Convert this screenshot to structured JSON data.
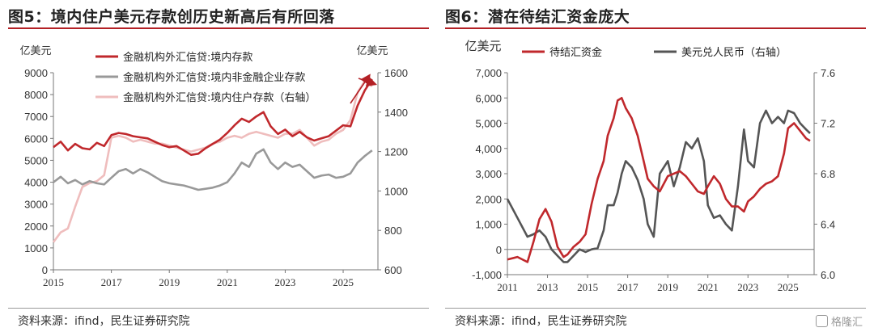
{
  "watermark": "格隆汇",
  "colors": {
    "red": "#c0282c",
    "gray": "#999999",
    "pink": "#efbdbd",
    "dark": "#555555",
    "accent": "#b32025"
  },
  "chart_data": [
    {
      "type": "line",
      "title": "图5：境内住户美元存款创历史新高后有所回落",
      "source": "资料来源：ifind，民生证券研究院",
      "left_unit": "亿美元",
      "right_unit": "亿美元",
      "xlim": [
        2015,
        2026.2
      ],
      "ylim": [
        0,
        9000
      ],
      "y2lim": [
        600,
        1600
      ],
      "xticks": [
        "2015",
        "2017",
        "2019",
        "2021",
        "2023",
        "2025"
      ],
      "yticks": [
        "0",
        "1000",
        "2000",
        "3000",
        "4000",
        "5000",
        "6000",
        "7000",
        "8000",
        "9000"
      ],
      "y2ticks": [
        "600",
        "800",
        "1000",
        "1200",
        "1400",
        "1600"
      ],
      "legend_position": "top",
      "series": [
        {
          "name": "金融机构外汇信贷:境内存款",
          "axis": "left",
          "color": "#c0282c",
          "x": [
            2015.0,
            2015.25,
            2015.5,
            2015.75,
            2016.0,
            2016.25,
            2016.5,
            2016.75,
            2017.0,
            2017.25,
            2017.5,
            2017.75,
            2018.0,
            2018.25,
            2018.5,
            2018.75,
            2019.0,
            2019.25,
            2019.5,
            2019.75,
            2020.0,
            2020.25,
            2020.5,
            2020.75,
            2021.0,
            2021.25,
            2021.5,
            2021.75,
            2022.0,
            2022.25,
            2022.5,
            2022.75,
            2023.0,
            2023.25,
            2023.5,
            2023.75,
            2024.0,
            2024.25,
            2024.5,
            2024.75,
            2025.0,
            2025.25,
            2025.5,
            2025.75,
            2026.0
          ],
          "values": [
            5600,
            5850,
            5450,
            5750,
            5550,
            5500,
            5800,
            5650,
            6150,
            6250,
            6200,
            6100,
            6050,
            6000,
            5850,
            5700,
            5600,
            5650,
            5450,
            5250,
            5300,
            5550,
            5750,
            5950,
            6250,
            6600,
            6900,
            6750,
            7000,
            7200,
            6550,
            6200,
            6400,
            6100,
            6300,
            6050,
            5900,
            6000,
            6100,
            6350,
            6600,
            6550,
            7500,
            8200,
            8700
          ]
        },
        {
          "name": "金融机构外汇信贷:境内非金融企业存款",
          "axis": "left",
          "color": "#999999",
          "x": [
            2015.0,
            2015.25,
            2015.5,
            2015.75,
            2016.0,
            2016.25,
            2016.5,
            2016.75,
            2017.0,
            2017.25,
            2017.5,
            2017.75,
            2018.0,
            2018.25,
            2018.5,
            2018.75,
            2019.0,
            2019.25,
            2019.5,
            2019.75,
            2020.0,
            2020.25,
            2020.5,
            2020.75,
            2021.0,
            2021.25,
            2021.5,
            2021.75,
            2022.0,
            2022.25,
            2022.5,
            2022.75,
            2023.0,
            2023.25,
            2023.5,
            2023.75,
            2024.0,
            2024.25,
            2024.5,
            2024.75,
            2025.0,
            2025.25,
            2025.5,
            2025.75,
            2026.0
          ],
          "values": [
            4000,
            4250,
            3950,
            4100,
            3900,
            4050,
            3950,
            3900,
            4200,
            4500,
            4600,
            4400,
            4600,
            4450,
            4250,
            4050,
            3950,
            3900,
            3850,
            3750,
            3650,
            3700,
            3750,
            3850,
            4000,
            4400,
            4900,
            4700,
            5300,
            5500,
            4900,
            4600,
            4900,
            4700,
            4800,
            4500,
            4200,
            4300,
            4350,
            4200,
            4250,
            4400,
            4900,
            5200,
            5450
          ]
        },
        {
          "name": "金融机构外汇信贷:境内住户存款（右轴）",
          "axis": "right",
          "color": "#efbdbd",
          "x": [
            2015.0,
            2015.25,
            2015.5,
            2015.75,
            2016.0,
            2016.25,
            2016.5,
            2016.75,
            2017.0,
            2017.25,
            2017.5,
            2017.75,
            2018.0,
            2018.25,
            2018.5,
            2018.75,
            2019.0,
            2019.25,
            2019.5,
            2019.75,
            2020.0,
            2020.25,
            2020.5,
            2020.75,
            2021.0,
            2021.25,
            2021.5,
            2021.75,
            2022.0,
            2022.25,
            2022.5,
            2022.75,
            2023.0,
            2023.25,
            2023.5,
            2023.75,
            2024.0,
            2024.25,
            2024.5,
            2024.75,
            2025.0,
            2025.25,
            2025.5,
            2025.75,
            2026.0
          ],
          "values": [
            740,
            790,
            810,
            920,
            1020,
            1040,
            1050,
            1080,
            1270,
            1280,
            1270,
            1250,
            1260,
            1250,
            1240,
            1240,
            1230,
            1220,
            1210,
            1200,
            1210,
            1220,
            1240,
            1250,
            1270,
            1280,
            1270,
            1290,
            1300,
            1290,
            1280,
            1270,
            1290,
            1290,
            1310,
            1270,
            1230,
            1250,
            1260,
            1290,
            1310,
            1360,
            1500,
            1560,
            1530
          ]
        }
      ],
      "annotation": "upward-arrows"
    },
    {
      "type": "line",
      "title": "图6：潜在待结汇资金庞大",
      "source": "资料来源：ifind，民生证券研究院",
      "left_unit": "亿美元",
      "xlim": [
        2011,
        2026.3
      ],
      "ylim": [
        -1000,
        7000
      ],
      "y2lim": [
        6.0,
        7.6
      ],
      "xticks": [
        "2011",
        "2013",
        "2015",
        "2017",
        "2019",
        "2021",
        "2023",
        "2025"
      ],
      "yticks": [
        "-1,000",
        "0",
        "1,000",
        "2,000",
        "3,000",
        "4,000",
        "5,000",
        "6,000",
        "7,000"
      ],
      "y2ticks": [
        "6.0",
        "6.4",
        "6.8",
        "7.2",
        "7.6"
      ],
      "legend_position": "top",
      "series": [
        {
          "name": "待结汇资金",
          "axis": "left",
          "color": "#c0282c",
          "x": [
            2011.0,
            2011.5,
            2012.0,
            2012.3,
            2012.6,
            2012.9,
            2013.2,
            2013.5,
            2013.8,
            2014.0,
            2014.3,
            2014.6,
            2014.9,
            2015.2,
            2015.5,
            2015.8,
            2016.0,
            2016.3,
            2016.5,
            2016.7,
            2016.9,
            2017.2,
            2017.5,
            2017.8,
            2018.0,
            2018.3,
            2018.6,
            2019.0,
            2019.3,
            2019.6,
            2019.9,
            2020.2,
            2020.5,
            2020.8,
            2021.0,
            2021.3,
            2021.6,
            2021.9,
            2022.2,
            2022.5,
            2022.8,
            2023.0,
            2023.3,
            2023.6,
            2023.9,
            2024.2,
            2024.5,
            2024.8,
            2025.0,
            2025.3,
            2025.6,
            2025.9,
            2026.1
          ],
          "values": [
            -400,
            -300,
            -500,
            300,
            1200,
            1600,
            1100,
            100,
            -300,
            -200,
            100,
            300,
            600,
            1800,
            2800,
            3500,
            4500,
            5200,
            5900,
            6000,
            5600,
            5200,
            4500,
            3500,
            2800,
            2500,
            2300,
            2900,
            3000,
            3100,
            2900,
            2600,
            2300,
            2200,
            2500,
            2900,
            2600,
            2000,
            1700,
            1700,
            1500,
            1900,
            2100,
            2400,
            2600,
            2700,
            2900,
            3800,
            4800,
            5000,
            4700,
            4400,
            4300
          ]
        },
        {
          "name": "美元兑人民币（右轴）",
          "axis": "right",
          "color": "#555555",
          "x": [
            2011.0,
            2011.5,
            2012.0,
            2012.3,
            2012.6,
            2012.9,
            2013.2,
            2013.5,
            2013.8,
            2014.0,
            2014.3,
            2014.6,
            2014.9,
            2015.2,
            2015.5,
            2015.8,
            2016.0,
            2016.3,
            2016.5,
            2016.7,
            2016.9,
            2017.2,
            2017.5,
            2017.8,
            2018.0,
            2018.3,
            2018.6,
            2019.0,
            2019.3,
            2019.6,
            2019.9,
            2020.2,
            2020.5,
            2020.8,
            2021.0,
            2021.3,
            2021.6,
            2021.9,
            2022.2,
            2022.5,
            2022.8,
            2023.0,
            2023.3,
            2023.6,
            2023.9,
            2024.2,
            2024.5,
            2024.8,
            2025.0,
            2025.3,
            2025.6,
            2025.9,
            2026.1
          ],
          "values": [
            6.6,
            6.45,
            6.3,
            6.32,
            6.35,
            6.3,
            6.2,
            6.15,
            6.1,
            6.1,
            6.15,
            6.2,
            6.18,
            6.2,
            6.21,
            6.35,
            6.55,
            6.55,
            6.65,
            6.8,
            6.9,
            6.85,
            6.75,
            6.6,
            6.4,
            6.3,
            6.8,
            6.9,
            6.7,
            6.85,
            7.05,
            7.0,
            7.08,
            6.9,
            6.55,
            6.45,
            6.47,
            6.4,
            6.35,
            6.7,
            7.15,
            6.9,
            6.85,
            7.2,
            7.3,
            7.2,
            7.25,
            7.2,
            7.3,
            7.28,
            7.2,
            7.15,
            7.12
          ]
        }
      ]
    }
  ]
}
